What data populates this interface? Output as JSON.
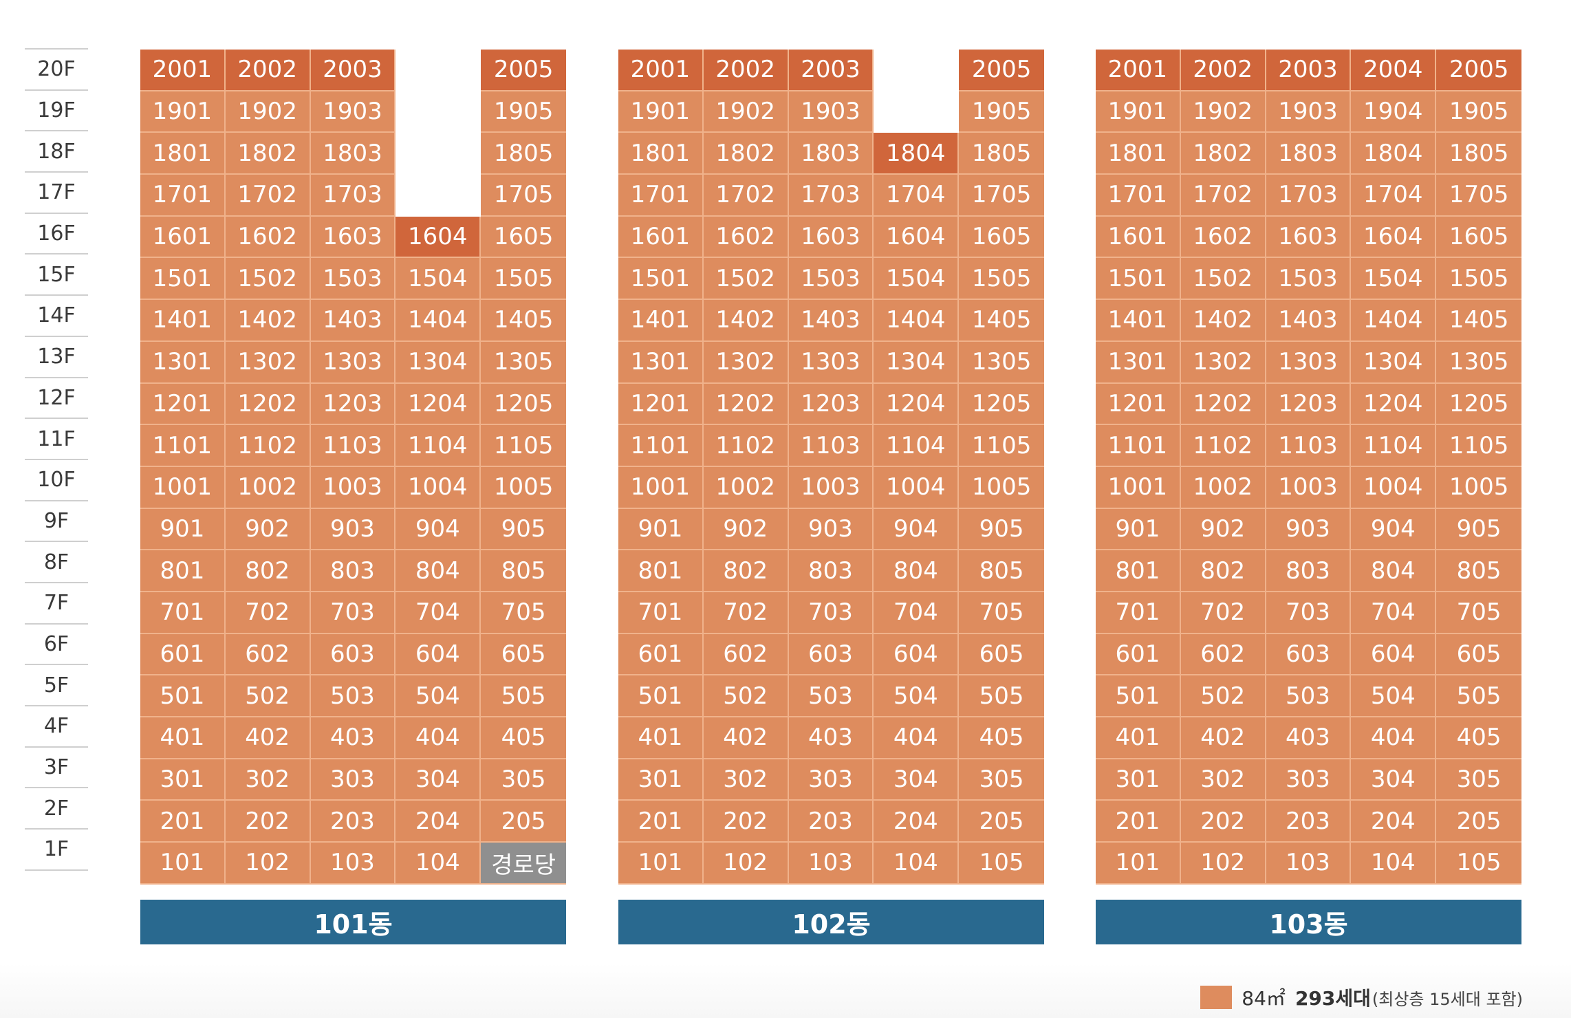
{
  "floors": [
    "20F",
    "19F",
    "18F",
    "17F",
    "16F",
    "15F",
    "14F",
    "13F",
    "12F",
    "11F",
    "10F",
    "9F",
    "8F",
    "7F",
    "6F",
    "5F",
    "4F",
    "3F",
    "2F",
    "1F"
  ],
  "buildings": [
    {
      "name": "101동",
      "rows": [
        [
          {
            "t": "2001",
            "s": "top"
          },
          {
            "t": "2002",
            "s": "top"
          },
          {
            "t": "2003",
            "s": "top"
          },
          {
            "t": "",
            "s": "empty"
          },
          {
            "t": "2005",
            "s": "top"
          }
        ],
        [
          {
            "t": "1901"
          },
          {
            "t": "1902"
          },
          {
            "t": "1903"
          },
          {
            "t": "",
            "s": "empty"
          },
          {
            "t": "1905"
          }
        ],
        [
          {
            "t": "1801"
          },
          {
            "t": "1802"
          },
          {
            "t": "1803"
          },
          {
            "t": "",
            "s": "empty"
          },
          {
            "t": "1805"
          }
        ],
        [
          {
            "t": "1701"
          },
          {
            "t": "1702"
          },
          {
            "t": "1703"
          },
          {
            "t": "",
            "s": "empty"
          },
          {
            "t": "1705"
          }
        ],
        [
          {
            "t": "1601"
          },
          {
            "t": "1602"
          },
          {
            "t": "1603"
          },
          {
            "t": "1604",
            "s": "hl"
          },
          {
            "t": "1605"
          }
        ],
        [
          {
            "t": "1501"
          },
          {
            "t": "1502"
          },
          {
            "t": "1503"
          },
          {
            "t": "1504"
          },
          {
            "t": "1505"
          }
        ],
        [
          {
            "t": "1401"
          },
          {
            "t": "1402"
          },
          {
            "t": "1403"
          },
          {
            "t": "1404"
          },
          {
            "t": "1405"
          }
        ],
        [
          {
            "t": "1301"
          },
          {
            "t": "1302"
          },
          {
            "t": "1303"
          },
          {
            "t": "1304"
          },
          {
            "t": "1305"
          }
        ],
        [
          {
            "t": "1201"
          },
          {
            "t": "1202"
          },
          {
            "t": "1203"
          },
          {
            "t": "1204"
          },
          {
            "t": "1205"
          }
        ],
        [
          {
            "t": "1101"
          },
          {
            "t": "1102"
          },
          {
            "t": "1103"
          },
          {
            "t": "1104"
          },
          {
            "t": "1105"
          }
        ],
        [
          {
            "t": "1001"
          },
          {
            "t": "1002"
          },
          {
            "t": "1003"
          },
          {
            "t": "1004"
          },
          {
            "t": "1005"
          }
        ],
        [
          {
            "t": "901"
          },
          {
            "t": "902"
          },
          {
            "t": "903"
          },
          {
            "t": "904"
          },
          {
            "t": "905"
          }
        ],
        [
          {
            "t": "801"
          },
          {
            "t": "802"
          },
          {
            "t": "803"
          },
          {
            "t": "804"
          },
          {
            "t": "805"
          }
        ],
        [
          {
            "t": "701"
          },
          {
            "t": "702"
          },
          {
            "t": "703"
          },
          {
            "t": "704"
          },
          {
            "t": "705"
          }
        ],
        [
          {
            "t": "601"
          },
          {
            "t": "602"
          },
          {
            "t": "603"
          },
          {
            "t": "604"
          },
          {
            "t": "605"
          }
        ],
        [
          {
            "t": "501"
          },
          {
            "t": "502"
          },
          {
            "t": "503"
          },
          {
            "t": "504"
          },
          {
            "t": "505"
          }
        ],
        [
          {
            "t": "401"
          },
          {
            "t": "402"
          },
          {
            "t": "403"
          },
          {
            "t": "404"
          },
          {
            "t": "405"
          }
        ],
        [
          {
            "t": "301"
          },
          {
            "t": "302"
          },
          {
            "t": "303"
          },
          {
            "t": "304"
          },
          {
            "t": "305"
          }
        ],
        [
          {
            "t": "201"
          },
          {
            "t": "202"
          },
          {
            "t": "203"
          },
          {
            "t": "204"
          },
          {
            "t": "205"
          }
        ],
        [
          {
            "t": "101"
          },
          {
            "t": "102"
          },
          {
            "t": "103"
          },
          {
            "t": "104"
          },
          {
            "t": "경로당",
            "s": "gray"
          }
        ]
      ]
    },
    {
      "name": "102동",
      "rows": [
        [
          {
            "t": "2001",
            "s": "top"
          },
          {
            "t": "2002",
            "s": "top"
          },
          {
            "t": "2003",
            "s": "top"
          },
          {
            "t": "",
            "s": "empty"
          },
          {
            "t": "2005",
            "s": "top"
          }
        ],
        [
          {
            "t": "1901"
          },
          {
            "t": "1902"
          },
          {
            "t": "1903"
          },
          {
            "t": "",
            "s": "empty"
          },
          {
            "t": "1905"
          }
        ],
        [
          {
            "t": "1801"
          },
          {
            "t": "1802"
          },
          {
            "t": "1803"
          },
          {
            "t": "1804",
            "s": "hl"
          },
          {
            "t": "1805"
          }
        ],
        [
          {
            "t": "1701"
          },
          {
            "t": "1702"
          },
          {
            "t": "1703"
          },
          {
            "t": "1704"
          },
          {
            "t": "1705"
          }
        ],
        [
          {
            "t": "1601"
          },
          {
            "t": "1602"
          },
          {
            "t": "1603"
          },
          {
            "t": "1604"
          },
          {
            "t": "1605"
          }
        ],
        [
          {
            "t": "1501"
          },
          {
            "t": "1502"
          },
          {
            "t": "1503"
          },
          {
            "t": "1504"
          },
          {
            "t": "1505"
          }
        ],
        [
          {
            "t": "1401"
          },
          {
            "t": "1402"
          },
          {
            "t": "1403"
          },
          {
            "t": "1404"
          },
          {
            "t": "1405"
          }
        ],
        [
          {
            "t": "1301"
          },
          {
            "t": "1302"
          },
          {
            "t": "1303"
          },
          {
            "t": "1304"
          },
          {
            "t": "1305"
          }
        ],
        [
          {
            "t": "1201"
          },
          {
            "t": "1202"
          },
          {
            "t": "1203"
          },
          {
            "t": "1204"
          },
          {
            "t": "1205"
          }
        ],
        [
          {
            "t": "1101"
          },
          {
            "t": "1102"
          },
          {
            "t": "1103"
          },
          {
            "t": "1104"
          },
          {
            "t": "1105"
          }
        ],
        [
          {
            "t": "1001"
          },
          {
            "t": "1002"
          },
          {
            "t": "1003"
          },
          {
            "t": "1004"
          },
          {
            "t": "1005"
          }
        ],
        [
          {
            "t": "901"
          },
          {
            "t": "902"
          },
          {
            "t": "903"
          },
          {
            "t": "904"
          },
          {
            "t": "905"
          }
        ],
        [
          {
            "t": "801"
          },
          {
            "t": "802"
          },
          {
            "t": "803"
          },
          {
            "t": "804"
          },
          {
            "t": "805"
          }
        ],
        [
          {
            "t": "701"
          },
          {
            "t": "702"
          },
          {
            "t": "703"
          },
          {
            "t": "704"
          },
          {
            "t": "705"
          }
        ],
        [
          {
            "t": "601"
          },
          {
            "t": "602"
          },
          {
            "t": "603"
          },
          {
            "t": "604"
          },
          {
            "t": "605"
          }
        ],
        [
          {
            "t": "501"
          },
          {
            "t": "502"
          },
          {
            "t": "503"
          },
          {
            "t": "504"
          },
          {
            "t": "505"
          }
        ],
        [
          {
            "t": "401"
          },
          {
            "t": "402"
          },
          {
            "t": "403"
          },
          {
            "t": "404"
          },
          {
            "t": "405"
          }
        ],
        [
          {
            "t": "301"
          },
          {
            "t": "302"
          },
          {
            "t": "303"
          },
          {
            "t": "304"
          },
          {
            "t": "305"
          }
        ],
        [
          {
            "t": "201"
          },
          {
            "t": "202"
          },
          {
            "t": "203"
          },
          {
            "t": "204"
          },
          {
            "t": "205"
          }
        ],
        [
          {
            "t": "101"
          },
          {
            "t": "102"
          },
          {
            "t": "103"
          },
          {
            "t": "104"
          },
          {
            "t": "105"
          }
        ]
      ]
    },
    {
      "name": "103동",
      "rows": [
        [
          {
            "t": "2001",
            "s": "top"
          },
          {
            "t": "2002",
            "s": "top"
          },
          {
            "t": "2003",
            "s": "top"
          },
          {
            "t": "2004",
            "s": "top"
          },
          {
            "t": "2005",
            "s": "top"
          }
        ],
        [
          {
            "t": "1901"
          },
          {
            "t": "1902"
          },
          {
            "t": "1903"
          },
          {
            "t": "1904"
          },
          {
            "t": "1905"
          }
        ],
        [
          {
            "t": "1801"
          },
          {
            "t": "1802"
          },
          {
            "t": "1803"
          },
          {
            "t": "1804"
          },
          {
            "t": "1805"
          }
        ],
        [
          {
            "t": "1701"
          },
          {
            "t": "1702"
          },
          {
            "t": "1703"
          },
          {
            "t": "1704"
          },
          {
            "t": "1705"
          }
        ],
        [
          {
            "t": "1601"
          },
          {
            "t": "1602"
          },
          {
            "t": "1603"
          },
          {
            "t": "1604"
          },
          {
            "t": "1605"
          }
        ],
        [
          {
            "t": "1501"
          },
          {
            "t": "1502"
          },
          {
            "t": "1503"
          },
          {
            "t": "1504"
          },
          {
            "t": "1505"
          }
        ],
        [
          {
            "t": "1401"
          },
          {
            "t": "1402"
          },
          {
            "t": "1403"
          },
          {
            "t": "1404"
          },
          {
            "t": "1405"
          }
        ],
        [
          {
            "t": "1301"
          },
          {
            "t": "1302"
          },
          {
            "t": "1303"
          },
          {
            "t": "1304"
          },
          {
            "t": "1305"
          }
        ],
        [
          {
            "t": "1201"
          },
          {
            "t": "1202"
          },
          {
            "t": "1203"
          },
          {
            "t": "1204"
          },
          {
            "t": "1205"
          }
        ],
        [
          {
            "t": "1101"
          },
          {
            "t": "1102"
          },
          {
            "t": "1103"
          },
          {
            "t": "1104"
          },
          {
            "t": "1105"
          }
        ],
        [
          {
            "t": "1001"
          },
          {
            "t": "1002"
          },
          {
            "t": "1003"
          },
          {
            "t": "1004"
          },
          {
            "t": "1005"
          }
        ],
        [
          {
            "t": "901"
          },
          {
            "t": "902"
          },
          {
            "t": "903"
          },
          {
            "t": "904"
          },
          {
            "t": "905"
          }
        ],
        [
          {
            "t": "801"
          },
          {
            "t": "802"
          },
          {
            "t": "803"
          },
          {
            "t": "804"
          },
          {
            "t": "805"
          }
        ],
        [
          {
            "t": "701"
          },
          {
            "t": "702"
          },
          {
            "t": "703"
          },
          {
            "t": "704"
          },
          {
            "t": "705"
          }
        ],
        [
          {
            "t": "601"
          },
          {
            "t": "602"
          },
          {
            "t": "603"
          },
          {
            "t": "604"
          },
          {
            "t": "605"
          }
        ],
        [
          {
            "t": "501"
          },
          {
            "t": "502"
          },
          {
            "t": "503"
          },
          {
            "t": "504"
          },
          {
            "t": "505"
          }
        ],
        [
          {
            "t": "401"
          },
          {
            "t": "402"
          },
          {
            "t": "403"
          },
          {
            "t": "404"
          },
          {
            "t": "405"
          }
        ],
        [
          {
            "t": "301"
          },
          {
            "t": "302"
          },
          {
            "t": "303"
          },
          {
            "t": "304"
          },
          {
            "t": "305"
          }
        ],
        [
          {
            "t": "201"
          },
          {
            "t": "202"
          },
          {
            "t": "203"
          },
          {
            "t": "204"
          },
          {
            "t": "205"
          }
        ],
        [
          {
            "t": "101"
          },
          {
            "t": "102"
          },
          {
            "t": "103"
          },
          {
            "t": "104"
          },
          {
            "t": "105"
          }
        ]
      ]
    }
  ],
  "legend": {
    "area": "84㎡",
    "units": "293세대",
    "note": "(최상층 15세대 포함)",
    "swatch_color": "#de8c5e"
  },
  "colors": {
    "unit": "#de8c5e",
    "top_floor": "#d0663b",
    "senior_center": "#8f8f8f",
    "building_label": "#29698f"
  }
}
